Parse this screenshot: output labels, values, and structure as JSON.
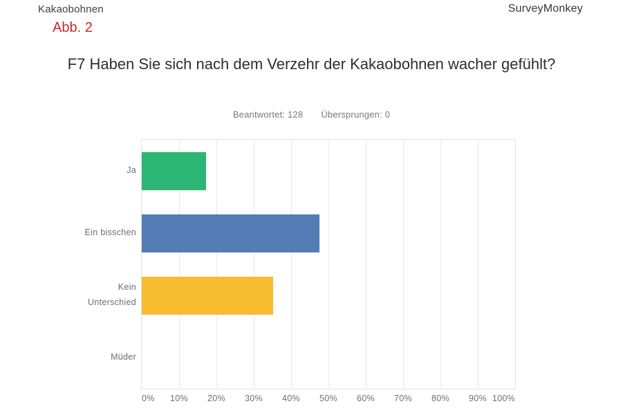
{
  "header": {
    "document_title": "Kakaobohnen",
    "brand": "SurveyMonkey",
    "figure_label": "Abb. 2"
  },
  "question": {
    "title": "F7 Haben Sie sich nach dem Verzehr der Kakaobohnen wacher gefühlt?",
    "answered_label": "Beantwortet:",
    "answered_count": "128",
    "skipped_label": "Übersprungen:",
    "skipped_count": "0"
  },
  "chart_data": {
    "type": "bar",
    "orientation": "horizontal",
    "title": "F7 Haben Sie sich nach dem Verzehr der Kakaobohnen wacher gefühlt?",
    "categories": [
      "Ja",
      "Ein bisschen",
      "Kein Unterschied",
      "Müder"
    ],
    "values": [
      17.19,
      47.66,
      35.16,
      0
    ],
    "bar_colors": [
      "#2bb673",
      "#547cb5",
      "#f8bc31",
      "#cccccc"
    ],
    "x_tick_labels": [
      "0%",
      "10%",
      "20%",
      "30%",
      "40%",
      "50%",
      "60%",
      "70%",
      "80%",
      "90%",
      "100%"
    ],
    "xlim": [
      0,
      100
    ],
    "grid": true,
    "gridline_color": "#e8e8e8",
    "legend": "none",
    "xlabel": "",
    "ylabel": ""
  }
}
